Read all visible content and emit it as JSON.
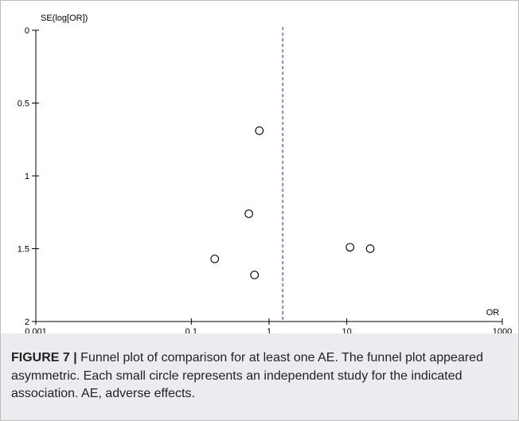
{
  "chart_data": {
    "type": "scatter",
    "title": "",
    "xlabel": "OR",
    "ylabel": "SE(log[OR])",
    "x_scale": "log",
    "xlim": [
      0.001,
      1000
    ],
    "ylim": [
      0,
      2
    ],
    "y_inverted": true,
    "x_ticks": [
      0.001,
      0.1,
      1,
      10,
      1000
    ],
    "x_tick_labels": [
      "0.001",
      "0.1",
      "1",
      "10",
      "1000"
    ],
    "y_ticks": [
      0,
      0.5,
      1,
      1.5,
      2
    ],
    "y_tick_labels": [
      "0",
      "0.5",
      "1",
      "1.5",
      "2"
    ],
    "pooled_or": 1.5,
    "pooled_line_color": "#3344cc",
    "marker": "open-circle",
    "points": [
      {
        "x": 0.75,
        "y": 0.69
      },
      {
        "x": 0.55,
        "y": 1.26
      },
      {
        "x": 0.2,
        "y": 1.57
      },
      {
        "x": 0.65,
        "y": 1.68
      },
      {
        "x": 11,
        "y": 1.49
      },
      {
        "x": 20,
        "y": 1.5
      }
    ],
    "grid": false,
    "legend": "none"
  },
  "caption": {
    "label": "FIGURE 7 |",
    "text": " Funnel plot of comparison for at least one AE. The funnel plot appeared asymmetric. Each small circle represents an independent study for the indicated association. AE, adverse effects."
  }
}
